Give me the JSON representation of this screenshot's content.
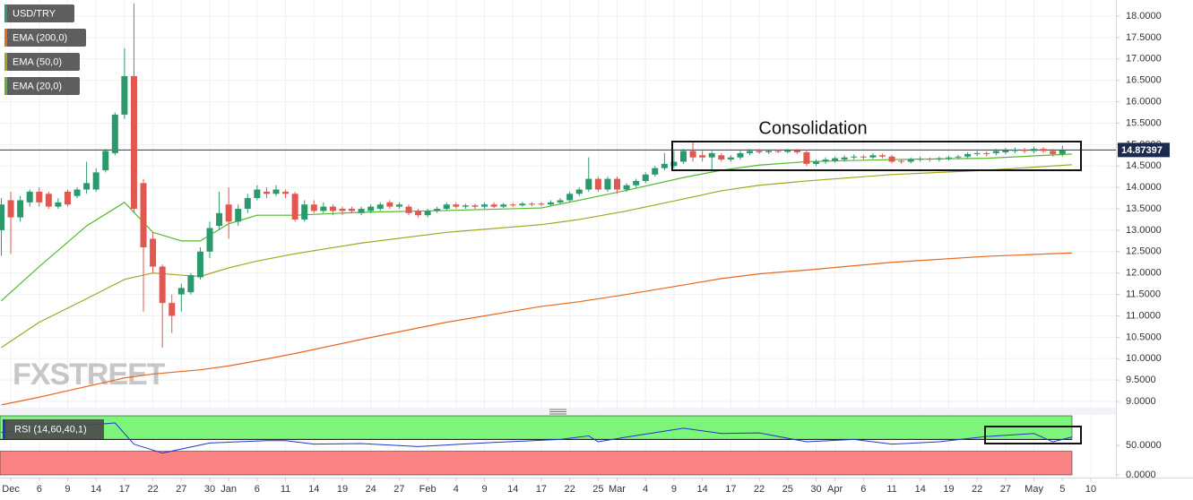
{
  "chart_data": {
    "type": "candlestick",
    "name": "USD/TRY",
    "up_color": "#2a9a6c",
    "down_color": "#e0584f",
    "x": [
      -1,
      0,
      1,
      2,
      3,
      4,
      5,
      6,
      7,
      8,
      9,
      10,
      11,
      12,
      13,
      14,
      15,
      16,
      17,
      18,
      19,
      20,
      21,
      22,
      23,
      24,
      25,
      26,
      27,
      28,
      29,
      30,
      31,
      32,
      33,
      34,
      35,
      36,
      37,
      38,
      39,
      40,
      41,
      42,
      43,
      44,
      45,
      46,
      47,
      48,
      49,
      50,
      51,
      52,
      53,
      54,
      55,
      56,
      57,
      58,
      59,
      60,
      61,
      62,
      63,
      64,
      65,
      66,
      67,
      68,
      69,
      70,
      71,
      72,
      73,
      74,
      75,
      76,
      77,
      78,
      79,
      80,
      81,
      82,
      83,
      84,
      85,
      86,
      87,
      88,
      89,
      90,
      91,
      92,
      93,
      94,
      95,
      96,
      97,
      98,
      99,
      100,
      101,
      102,
      103,
      104,
      105,
      106,
      107,
      108,
      109,
      110,
      111
    ],
    "open": [
      13.0,
      13.7,
      13.3,
      13.65,
      13.9,
      13.85,
      13.55,
      13.9,
      13.8,
      13.95,
      13.95,
      14.4,
      14.8,
      15.7,
      16.6,
      14.1,
      12.8,
      12.15,
      11.3,
      11.5,
      11.55,
      11.9,
      12.5,
      13.1,
      13.6,
      13.2,
      13.5,
      13.75,
      13.9,
      13.85,
      13.9,
      13.85,
      13.25,
      13.6,
      13.45,
      13.55,
      13.5,
      13.5,
      13.4,
      13.45,
      13.5,
      13.65,
      13.55,
      13.55,
      13.45,
      13.35,
      13.45,
      13.5,
      13.6,
      13.55,
      13.58,
      13.55,
      13.6,
      13.55,
      13.6,
      13.58,
      13.62,
      13.62,
      13.6,
      13.65,
      13.7,
      13.85,
      13.95,
      14.2,
      13.95,
      14.2,
      13.95,
      14.05,
      14.15,
      14.3,
      14.45,
      14.5,
      14.6,
      14.85,
      14.75,
      14.7,
      14.75,
      14.65,
      14.7,
      14.8,
      14.85,
      14.82,
      14.85,
      14.83,
      14.86,
      14.82,
      14.55,
      14.6,
      14.62,
      14.65,
      14.7,
      14.72,
      14.7,
      14.75,
      14.72,
      14.62,
      14.6,
      14.65,
      14.67,
      14.65,
      14.68,
      14.7,
      14.72,
      14.78,
      14.8,
      14.8,
      14.82,
      14.85,
      14.88,
      14.85,
      14.9,
      14.85,
      14.78
    ],
    "high": [
      13.75,
      13.9,
      13.8,
      13.95,
      14.0,
      13.9,
      13.75,
      13.95,
      14.0,
      14.6,
      14.45,
      14.9,
      15.75,
      17.25,
      18.3,
      14.2,
      12.95,
      12.2,
      11.5,
      11.75,
      12.0,
      12.6,
      13.2,
      13.9,
      14.0,
      13.6,
      13.85,
      14.05,
      14.0,
      14.05,
      13.95,
      13.9,
      13.7,
      13.7,
      13.65,
      13.6,
      13.55,
      13.55,
      13.55,
      13.6,
      13.65,
      13.7,
      13.65,
      13.6,
      13.5,
      13.5,
      13.55,
      13.65,
      13.65,
      13.62,
      13.62,
      13.65,
      13.65,
      13.64,
      13.64,
      13.66,
      13.66,
      13.66,
      13.7,
      13.75,
      13.9,
      14.0,
      14.7,
      14.25,
      14.25,
      14.25,
      14.1,
      14.2,
      14.35,
      14.5,
      14.8,
      14.85,
      14.9,
      15.05,
      14.85,
      14.85,
      14.8,
      14.75,
      14.85,
      14.9,
      14.9,
      14.88,
      14.88,
      14.9,
      14.9,
      14.88,
      14.65,
      14.7,
      14.72,
      14.75,
      14.77,
      14.76,
      14.8,
      14.79,
      14.76,
      14.66,
      14.7,
      14.72,
      14.7,
      14.72,
      14.74,
      14.76,
      14.82,
      14.85,
      14.84,
      14.9,
      14.92,
      14.93,
      14.92,
      14.95,
      14.94,
      14.9,
      14.97
    ],
    "low": [
      12.4,
      12.45,
      13.2,
      13.55,
      13.55,
      13.5,
      13.5,
      13.55,
      13.75,
      13.85,
      13.9,
      14.35,
      14.75,
      15.6,
      13.4,
      11.1,
      12.0,
      10.25,
      10.6,
      11.1,
      11.5,
      11.85,
      12.35,
      13.0,
      12.8,
      13.1,
      13.4,
      13.7,
      13.75,
      13.8,
      13.75,
      13.2,
      13.2,
      13.4,
      13.4,
      13.35,
      13.35,
      13.4,
      13.35,
      13.4,
      13.45,
      13.5,
      13.5,
      13.35,
      13.3,
      13.3,
      13.4,
      13.45,
      13.5,
      13.5,
      13.5,
      13.5,
      13.52,
      13.52,
      13.54,
      13.55,
      13.56,
      13.56,
      13.56,
      13.6,
      13.65,
      13.8,
      13.9,
      13.9,
      13.9,
      13.85,
      13.9,
      14.0,
      14.1,
      14.25,
      14.4,
      14.45,
      14.55,
      14.6,
      14.6,
      14.4,
      14.6,
      14.6,
      14.65,
      14.75,
      14.78,
      14.78,
      14.8,
      14.8,
      14.78,
      14.5,
      14.5,
      14.55,
      14.58,
      14.6,
      14.65,
      14.65,
      14.66,
      14.68,
      14.56,
      14.55,
      14.56,
      14.6,
      14.6,
      14.6,
      14.63,
      14.66,
      14.68,
      14.73,
      14.72,
      14.75,
      14.77,
      14.8,
      14.8,
      14.8,
      14.8,
      14.72,
      14.72
    ],
    "close": [
      13.6,
      13.3,
      13.7,
      13.9,
      13.65,
      13.55,
      13.65,
      13.6,
      13.95,
      14.1,
      14.35,
      14.85,
      15.7,
      16.6,
      13.5,
      12.6,
      12.15,
      11.3,
      11.0,
      11.65,
      11.95,
      12.5,
      13.05,
      13.4,
      13.2,
      13.5,
      13.75,
      13.95,
      13.85,
      13.95,
      13.85,
      13.25,
      13.6,
      13.45,
      13.55,
      13.45,
      13.45,
      13.45,
      13.5,
      13.55,
      13.6,
      13.55,
      13.6,
      13.4,
      13.35,
      13.45,
      13.5,
      13.6,
      13.55,
      13.58,
      13.55,
      13.6,
      13.55,
      13.6,
      13.58,
      13.62,
      13.6,
      13.6,
      13.65,
      13.7,
      13.85,
      13.95,
      14.2,
      13.95,
      14.2,
      13.95,
      14.05,
      14.15,
      14.3,
      14.45,
      14.55,
      14.6,
      14.85,
      14.7,
      14.7,
      14.8,
      14.65,
      14.7,
      14.8,
      14.85,
      14.82,
      14.85,
      14.83,
      14.86,
      14.82,
      14.55,
      14.6,
      14.65,
      14.68,
      14.7,
      14.72,
      14.7,
      14.75,
      14.72,
      14.6,
      14.6,
      14.65,
      14.67,
      14.65,
      14.68,
      14.7,
      14.72,
      14.78,
      14.8,
      14.78,
      14.85,
      14.87,
      14.88,
      14.85,
      14.9,
      14.85,
      14.78,
      14.87
    ],
    "series": [
      {
        "name": "EMA (200,0)",
        "color": "#e8681c",
        "x": [
          -1,
          3,
          8,
          12,
          15,
          18,
          20,
          23,
          26,
          30,
          37,
          46,
          56,
          60,
          65,
          71,
          75,
          79,
          84,
          93,
          103,
          112
        ],
        "values": [
          8.92,
          9.1,
          9.35,
          9.55,
          9.64,
          9.7,
          9.74,
          9.83,
          9.95,
          10.12,
          10.45,
          10.85,
          11.22,
          11.33,
          11.5,
          11.72,
          11.87,
          11.98,
          12.07,
          12.25,
          12.39,
          12.47
        ]
      },
      {
        "name": "EMA (50,0)",
        "color": "#a3a520",
        "x": [
          -1,
          3,
          8,
          12,
          15,
          18,
          20,
          23,
          26,
          30,
          37,
          46,
          56,
          60,
          65,
          71,
          75,
          79,
          84,
          93,
          103,
          112
        ],
        "values": [
          10.26,
          10.85,
          11.4,
          11.85,
          12.0,
          11.95,
          11.92,
          12.12,
          12.28,
          12.45,
          12.7,
          12.95,
          13.13,
          13.25,
          13.45,
          13.73,
          13.92,
          14.05,
          14.15,
          14.3,
          14.4,
          14.53
        ]
      },
      {
        "name": "EMA (20,0)",
        "color": "#56b82c",
        "x": [
          -1,
          3,
          8,
          12,
          15,
          18,
          20,
          23,
          26,
          30,
          37,
          46,
          56,
          60,
          65,
          71,
          75,
          79,
          84,
          93,
          103,
          112
        ],
        "values": [
          11.35,
          12.15,
          13.1,
          13.65,
          12.95,
          12.75,
          12.75,
          13.15,
          13.35,
          13.35,
          13.42,
          13.46,
          13.52,
          13.7,
          13.93,
          14.23,
          14.4,
          14.52,
          14.6,
          14.65,
          14.68,
          14.78
        ]
      }
    ],
    "last_price": 14.87397,
    "annotation": "Consolidation",
    "watermark": "FXSTREET",
    "grid": true,
    "xlim": [
      -1.14,
      116.65
    ],
    "ylim": [
      8.854,
      18.377
    ],
    "yticks": [
      {
        "value": 18,
        "label": "18.0000"
      },
      {
        "value": 17.5,
        "label": "17.5000"
      },
      {
        "value": 17,
        "label": "17.0000"
      },
      {
        "value": 16.5,
        "label": "16.5000"
      },
      {
        "value": 16,
        "label": "16.0000"
      },
      {
        "value": 15.5,
        "label": "15.5000"
      },
      {
        "value": 15,
        "label": "15.0000"
      },
      {
        "value": 14.5,
        "label": "14.5000"
      },
      {
        "value": 14,
        "label": "14.0000"
      },
      {
        "value": 13.5,
        "label": "13.5000"
      },
      {
        "value": 13,
        "label": "13.0000"
      },
      {
        "value": 12.5,
        "label": "12.5000"
      },
      {
        "value": 12,
        "label": "12.0000"
      },
      {
        "value": 11.5,
        "label": "11.5000"
      },
      {
        "value": 11,
        "label": "11.0000"
      },
      {
        "value": 10.5,
        "label": "10.5000"
      },
      {
        "value": 10,
        "label": "10.0000"
      },
      {
        "value": 9.5,
        "label": "9.5000"
      },
      {
        "value": 9,
        "label": "9.0000"
      }
    ],
    "xticks": [
      {
        "value": 0,
        "label": "Dec"
      },
      {
        "value": 3,
        "label": "6"
      },
      {
        "value": 6,
        "label": "9"
      },
      {
        "value": 9,
        "label": "14"
      },
      {
        "value": 12,
        "label": "17"
      },
      {
        "value": 15,
        "label": "22"
      },
      {
        "value": 18,
        "label": "27"
      },
      {
        "value": 21,
        "label": "30"
      },
      {
        "value": 23,
        "label": "Jan"
      },
      {
        "value": 26,
        "label": "6"
      },
      {
        "value": 29,
        "label": "11"
      },
      {
        "value": 32,
        "label": "14"
      },
      {
        "value": 35,
        "label": "19"
      },
      {
        "value": 38,
        "label": "24"
      },
      {
        "value": 41,
        "label": "27"
      },
      {
        "value": 44,
        "label": "Feb"
      },
      {
        "value": 47,
        "label": "4"
      },
      {
        "value": 50,
        "label": "9"
      },
      {
        "value": 53,
        "label": "14"
      },
      {
        "value": 56,
        "label": "17"
      },
      {
        "value": 59,
        "label": "22"
      },
      {
        "value": 62,
        "label": "25"
      },
      {
        "value": 64,
        "label": "Mar"
      },
      {
        "value": 67,
        "label": "4"
      },
      {
        "value": 70,
        "label": "9"
      },
      {
        "value": 73,
        "label": "14"
      },
      {
        "value": 76,
        "label": "17"
      },
      {
        "value": 79,
        "label": "22"
      },
      {
        "value": 82,
        "label": "25"
      },
      {
        "value": 85,
        "label": "30"
      },
      {
        "value": 87,
        "label": "Apr"
      },
      {
        "value": 90,
        "label": "6"
      },
      {
        "value": 93,
        "label": "11"
      },
      {
        "value": 96,
        "label": "14"
      },
      {
        "value": 99,
        "label": "19"
      },
      {
        "value": 102,
        "label": "22"
      },
      {
        "value": 105,
        "label": "27"
      },
      {
        "value": 108,
        "label": "May"
      },
      {
        "value": 111,
        "label": "5"
      },
      {
        "value": 114,
        "label": "10"
      }
    ],
    "rsi": {
      "name": "RSI (14,60,40,1)",
      "color": "#2233cc",
      "upper": 60,
      "lower": 40,
      "upper_color": "#7df57a",
      "lower_color": "#fa8383",
      "ylim": [
        0,
        100
      ],
      "yticks": [
        {
          "value": 50,
          "label": "50.0000"
        },
        {
          "value": 0,
          "label": "0.0000"
        }
      ],
      "x": [
        -1,
        11,
        13,
        16,
        21,
        27,
        29,
        32,
        37,
        43,
        51,
        58,
        61,
        62,
        65,
        71,
        75,
        79,
        84,
        89,
        93,
        98,
        103,
        108,
        110,
        112
      ],
      "values": [
        72,
        88,
        52,
        37,
        54,
        58,
        58,
        52,
        53,
        48,
        55,
        60,
        66,
        56,
        64,
        79,
        70,
        71,
        56,
        60,
        52,
        56,
        65,
        70,
        56,
        64
      ]
    }
  }
}
